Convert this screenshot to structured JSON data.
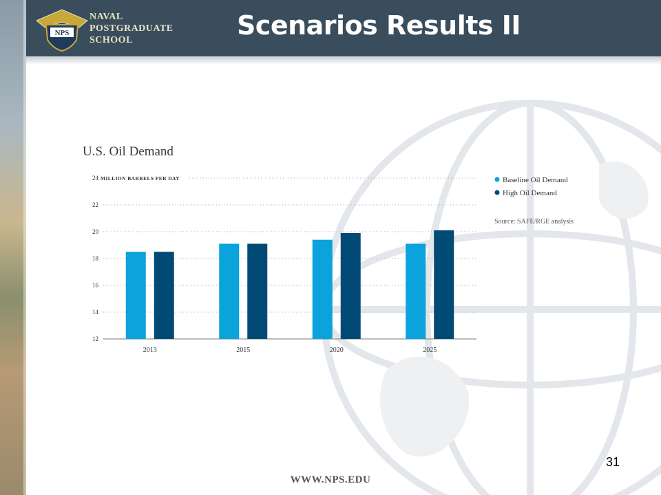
{
  "header": {
    "logo_lines": [
      "NAVAL",
      "POSTGRADUATE",
      "SCHOOL"
    ],
    "logo_badge": "NPS",
    "title": "Scenarios Results II"
  },
  "footer": {
    "url": "WWW.NPS.EDU",
    "page_number": "31"
  },
  "colors": {
    "header_bg": "#3a4d5c",
    "baseline": "#0aa3dc",
    "high": "#004a75"
  },
  "chart_data": {
    "type": "bar",
    "title": "U.S. Oil Demand",
    "ylabel": "MILLION BARRELS PER DAY",
    "categories": [
      "2013",
      "2015",
      "2020",
      "2025"
    ],
    "series": [
      {
        "name": "Baseline Oil Demand",
        "values": [
          18.5,
          19.1,
          19.4,
          19.1
        ]
      },
      {
        "name": "High Oil Demand",
        "values": [
          18.5,
          19.1,
          19.9,
          20.1
        ]
      }
    ],
    "ylim": [
      12,
      24
    ],
    "yticks": [
      12,
      14,
      16,
      18,
      20,
      22,
      24
    ],
    "grid": true,
    "legend_position": "right",
    "source": "Source: SAFE/RGE analysis"
  }
}
